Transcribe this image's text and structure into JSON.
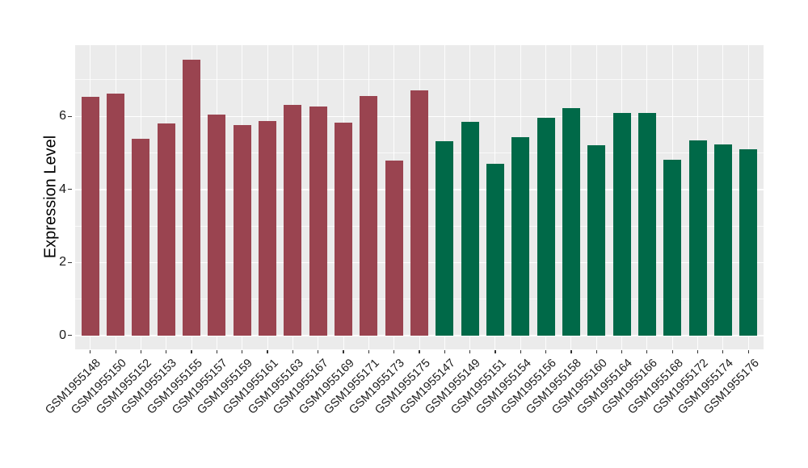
{
  "chart_data": {
    "type": "bar",
    "title": "",
    "xlabel": "",
    "ylabel": "Expression Level",
    "categories": [
      "GSM1955148",
      "GSM1955150",
      "GSM1955152",
      "GSM1955153",
      "GSM1955155",
      "GSM1955157",
      "GSM1955159",
      "GSM1955161",
      "GSM1955163",
      "GSM1955167",
      "GSM1955169",
      "GSM1955171",
      "GSM1955173",
      "GSM1955175",
      "GSM1955147",
      "GSM1955149",
      "GSM1955151",
      "GSM1955154",
      "GSM1955156",
      "GSM1955158",
      "GSM1955160",
      "GSM1955164",
      "GSM1955166",
      "GSM1955168",
      "GSM1955172",
      "GSM1955174",
      "GSM1955176"
    ],
    "values": [
      6.53,
      6.62,
      5.38,
      5.8,
      7.56,
      6.06,
      5.76,
      5.87,
      6.32,
      6.26,
      5.82,
      6.55,
      4.78,
      6.71,
      5.31,
      5.85,
      4.71,
      5.44,
      5.96,
      6.23,
      5.21,
      6.1,
      6.09,
      4.82,
      5.34,
      5.23,
      5.1
    ],
    "groups": [
      "red",
      "red",
      "red",
      "red",
      "red",
      "red",
      "red",
      "red",
      "red",
      "red",
      "red",
      "red",
      "red",
      "red",
      "green",
      "green",
      "green",
      "green",
      "green",
      "green",
      "green",
      "green",
      "green",
      "green",
      "green",
      "green",
      "green"
    ],
    "group_colors": {
      "red": "#9A4450",
      "green": "#006948"
    },
    "ytick_labels": [
      "0",
      "2",
      "4",
      "6"
    ],
    "yticks": [
      0,
      2,
      4,
      6
    ],
    "yticks_minor": [
      1,
      3,
      5,
      7
    ],
    "ylim": [
      -0.38,
      7.95
    ],
    "grid": true,
    "legend_position": "none",
    "panel_background": "#EBEBEB",
    "grid_color": "#FFFFFF"
  }
}
